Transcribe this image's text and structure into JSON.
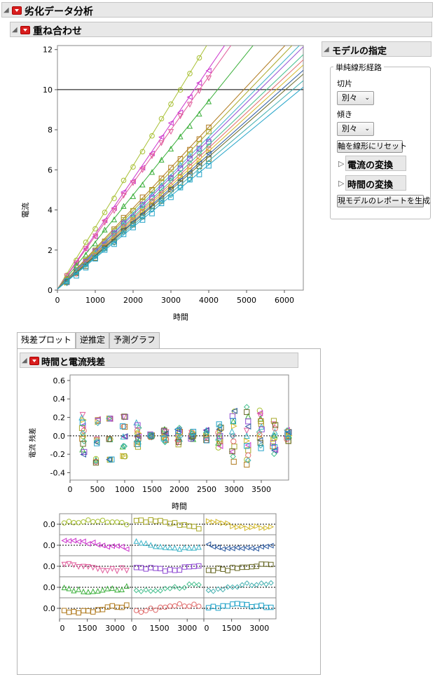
{
  "report": {
    "title": "劣化データ分析"
  },
  "overlay": {
    "title": "重ね合わせ"
  },
  "model_spec": {
    "title": "モデルの指定",
    "group_label": "単純線形経路",
    "intercept_label": "切片",
    "intercept_value": "別々",
    "slope_label": "傾き",
    "slope_value": "別々",
    "reset_axes_button": "軸を線形にリセット",
    "current_transform": "電流の変換",
    "time_transform": "時間の変換",
    "generate_report_button": "現モデルのレポートを生成"
  },
  "tabs": [
    {
      "label": "残差プロット"
    },
    {
      "label": "逆推定"
    },
    {
      "label": "予測グラフ"
    }
  ],
  "residual_section": {
    "title": "時間と電流残差"
  },
  "chart_data": [
    {
      "type": "line",
      "xlabel": "時間",
      "ylabel": "電流",
      "xlim": [
        0,
        6500
      ],
      "ylim": [
        0,
        12.2
      ],
      "xticks": [
        "0",
        "1000",
        "2000",
        "3000",
        "4000",
        "5000",
        "6000"
      ],
      "yticks": [
        "0",
        "2",
        "4",
        "6",
        "8",
        "10",
        "12"
      ],
      "reference_line_y": 10,
      "x_points": [
        250,
        500,
        750,
        1000,
        1250,
        1500,
        1750,
        2000,
        2250,
        2500,
        2750,
        3000,
        3250,
        3500,
        3750,
        4000
      ],
      "series": [
        {
          "color": "#a8c034",
          "marker": "circle",
          "slope": 0.00308
        },
        {
          "color": "#cc33cc",
          "marker": "triangle-left",
          "slope": 0.00275
        },
        {
          "color": "#e05a9a",
          "marker": "triangle-down",
          "slope": 0.00265
        },
        {
          "color": "#3aaf3a",
          "marker": "triangle-up",
          "slope": 0.00235
        },
        {
          "color": "#b07a1e",
          "marker": "square",
          "slope": 0.00202
        },
        {
          "color": "#a8a82a",
          "marker": "square",
          "slope": 0.00196
        },
        {
          "color": "#3cb4c8",
          "marker": "triangle-up",
          "slope": 0.0019
        },
        {
          "color": "#8f4bd2",
          "marker": "square",
          "slope": 0.00186
        },
        {
          "color": "#47c08f",
          "marker": "diamond",
          "slope": 0.0018
        },
        {
          "color": "#e06b6b",
          "marker": "circle",
          "slope": 0.00176
        },
        {
          "color": "#d2b82a",
          "marker": "triangle-right",
          "slope": 0.00172
        },
        {
          "color": "#2c5aa0",
          "marker": "triangle-left",
          "slope": 0.00168
        },
        {
          "color": "#6a6a28",
          "marker": "square",
          "slope": 0.00165
        },
        {
          "color": "#44b0b0",
          "marker": "diamond",
          "slope": 0.0016
        },
        {
          "color": "#22a3c8",
          "marker": "square",
          "slope": 0.00155
        }
      ]
    },
    {
      "type": "scatter",
      "xlabel": "時間",
      "ylabel": "電流 残差",
      "xlim": [
        0,
        4000
      ],
      "ylim": [
        -0.48,
        0.66
      ],
      "xticks": [
        "0",
        "500",
        "1000",
        "1500",
        "2000",
        "2500",
        "3000",
        "3500"
      ],
      "yticks": [
        "0.6",
        "0.4",
        "0.2",
        "0.0",
        "-0.2",
        "-0.4"
      ],
      "reference_line_y": 0.0
    },
    {
      "type": "scatter",
      "panel_grid": {
        "rows": 5,
        "cols": 3
      },
      "ytick_label": "0.0",
      "xticks": [
        "0",
        "1500",
        "3000"
      ]
    }
  ]
}
